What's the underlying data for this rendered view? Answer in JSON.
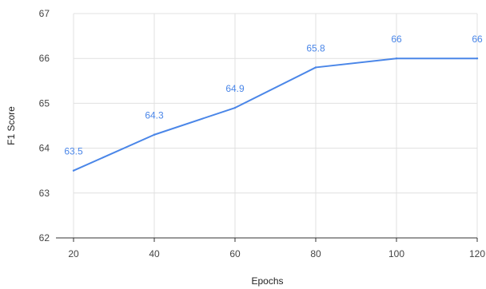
{
  "chart_data": {
    "type": "line",
    "title": "",
    "xlabel": "Epochs",
    "ylabel": "F1 Score",
    "x": [
      20,
      40,
      60,
      80,
      100,
      120
    ],
    "x_ticks": [
      "20",
      "40",
      "60",
      "80",
      "100",
      "120"
    ],
    "y_ticks": [
      "62",
      "63",
      "64",
      "65",
      "66",
      "67"
    ],
    "xlim": [
      20,
      120
    ],
    "ylim": [
      62,
      67
    ],
    "grid": true,
    "series": [
      {
        "values": [
          63.5,
          64.3,
          64.9,
          65.8,
          66,
          66
        ],
        "labels": [
          "63.5",
          "64.3",
          "64.9",
          "65.8",
          "66",
          "66"
        ],
        "color": "#4a86e8"
      }
    ]
  }
}
